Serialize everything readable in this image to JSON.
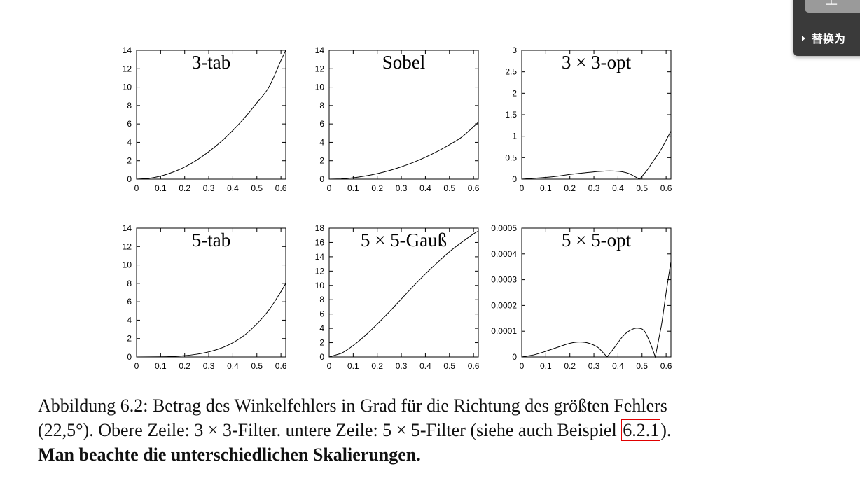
{
  "figure": {
    "plots": [
      {
        "id": "plot-3-tab",
        "title": "3-tab",
        "xticks": [
          "0",
          "0.1",
          "0.2",
          "0.3",
          "0.4",
          "0.5",
          "0.6"
        ],
        "yticks": [
          "0",
          "2",
          "4",
          "6",
          "8",
          "10",
          "12",
          "14"
        ]
      },
      {
        "id": "plot-sobel",
        "title": "Sobel",
        "xticks": [
          "0",
          "0.1",
          "0.2",
          "0.3",
          "0.4",
          "0.5",
          "0.6"
        ],
        "yticks": [
          "0",
          "2",
          "4",
          "6",
          "8",
          "10",
          "12",
          "14"
        ]
      },
      {
        "id": "plot-3x3-opt",
        "title": "3 × 3-opt",
        "xticks": [
          "0",
          "0.1",
          "0.2",
          "0.3",
          "0.4",
          "0.5",
          "0.6"
        ],
        "yticks": [
          "0",
          "0.5",
          "1",
          "1.5",
          "2",
          "2.5",
          "3"
        ]
      },
      {
        "id": "plot-5-tab",
        "title": "5-tab",
        "xticks": [
          "0",
          "0.1",
          "0.2",
          "0.3",
          "0.4",
          "0.5",
          "0.6"
        ],
        "yticks": [
          "0",
          "2",
          "4",
          "6",
          "8",
          "10",
          "12",
          "14"
        ]
      },
      {
        "id": "plot-5x5-gauss",
        "title": "5 × 5-Gauß",
        "xticks": [
          "0",
          "0.1",
          "0.2",
          "0.3",
          "0.4",
          "0.5",
          "0.6"
        ],
        "yticks": [
          "0",
          "2",
          "4",
          "6",
          "8",
          "10",
          "12",
          "14",
          "16",
          "18"
        ]
      },
      {
        "id": "plot-5x5-opt",
        "title": "5 × 5-opt",
        "xticks": [
          "0",
          "0.1",
          "0.2",
          "0.3",
          "0.4",
          "0.5",
          "0.6"
        ],
        "yticks": [
          "0",
          "0.0001",
          "0.0002",
          "0.0003",
          "0.0004",
          "0.0005"
        ]
      }
    ]
  },
  "chart_data": [
    {
      "type": "line",
      "title": "3-tab",
      "xlim": [
        0,
        0.62
      ],
      "ylim": [
        0,
        14
      ],
      "x": [
        0,
        0.05,
        0.1,
        0.15,
        0.2,
        0.25,
        0.3,
        0.35,
        0.4,
        0.45,
        0.5,
        0.55,
        0.6,
        0.62
      ],
      "y": [
        0,
        0.08,
        0.33,
        0.75,
        1.32,
        2.07,
        2.98,
        4.05,
        5.3,
        6.7,
        8.3,
        10.0,
        12.9,
        14.0
      ]
    },
    {
      "type": "line",
      "title": "Sobel",
      "xlim": [
        0,
        0.62
      ],
      "ylim": [
        0,
        14
      ],
      "x": [
        0,
        0.05,
        0.1,
        0.15,
        0.2,
        0.25,
        0.3,
        0.35,
        0.4,
        0.45,
        0.5,
        0.55,
        0.6,
        0.62
      ],
      "y": [
        0,
        0.03,
        0.15,
        0.34,
        0.6,
        0.93,
        1.34,
        1.82,
        2.38,
        3.02,
        3.74,
        4.55,
        5.7,
        6.2
      ]
    },
    {
      "type": "line",
      "title": "3 × 3-opt",
      "xlim": [
        0,
        0.62
      ],
      "ylim": [
        0,
        3
      ],
      "x": [
        0,
        0.05,
        0.1,
        0.15,
        0.2,
        0.25,
        0.3,
        0.35,
        0.38,
        0.42,
        0.45,
        0.49,
        0.52,
        0.55,
        0.58,
        0.62
      ],
      "y": [
        0,
        0.02,
        0.04,
        0.07,
        0.11,
        0.14,
        0.17,
        0.19,
        0.19,
        0.17,
        0.12,
        0.0,
        0.2,
        0.45,
        0.7,
        1.12
      ]
    },
    {
      "type": "line",
      "title": "5-tab",
      "xlim": [
        0,
        0.62
      ],
      "ylim": [
        0,
        14
      ],
      "x": [
        0,
        0.1,
        0.15,
        0.2,
        0.25,
        0.3,
        0.35,
        0.4,
        0.45,
        0.5,
        0.55,
        0.6,
        0.62
      ],
      "y": [
        0,
        0.02,
        0.06,
        0.14,
        0.3,
        0.55,
        0.95,
        1.55,
        2.4,
        3.6,
        5.1,
        7.1,
        8.0
      ]
    },
    {
      "type": "line",
      "title": "5 × 5-Gauß",
      "xlim": [
        0,
        0.62
      ],
      "ylim": [
        0,
        18
      ],
      "x": [
        0,
        0.05,
        0.1,
        0.15,
        0.2,
        0.25,
        0.3,
        0.35,
        0.4,
        0.45,
        0.5,
        0.55,
        0.6,
        0.62
      ],
      "y": [
        0,
        0.5,
        1.6,
        3.0,
        4.6,
        6.3,
        8.1,
        9.9,
        11.6,
        13.2,
        14.7,
        16.0,
        17.2,
        17.6
      ]
    },
    {
      "type": "line",
      "title": "5 × 5-opt",
      "xlim": [
        0,
        0.62
      ],
      "ylim": [
        0,
        0.0005
      ],
      "x": [
        0,
        0.05,
        0.1,
        0.15,
        0.2,
        0.24,
        0.28,
        0.32,
        0.355,
        0.38,
        0.42,
        0.45,
        0.48,
        0.51,
        0.54,
        0.555,
        0.58,
        0.6,
        0.62
      ],
      "y": [
        0,
        8e-06,
        2.2e-05,
        3.8e-05,
        5.3e-05,
        5.8e-05,
        5.3e-05,
        3.5e-05,
        0.0,
        3e-05,
        8e-05,
        0.000103,
        0.000112,
        0.0001,
        4e-05,
        0.0,
        0.00012,
        0.00025,
        0.00037
      ]
    }
  ],
  "caption": {
    "line1": "Abbildung 6.2: Betrag des Winkelfehlers in Grad für die Richtung des größten Fehlers",
    "line2_before": "(22,5°). Obere Zeile: 3 × 3-Filter. untere Zeile: 5 × 5-Filter (siehe auch Beispiel ",
    "line2_ref": "6.2.1",
    "line2_after": ").",
    "line3": "Man beachte die unterschiedlichen Skalierungen."
  },
  "float_panel": {
    "top_button": "上一",
    "item_label": "替换为"
  }
}
